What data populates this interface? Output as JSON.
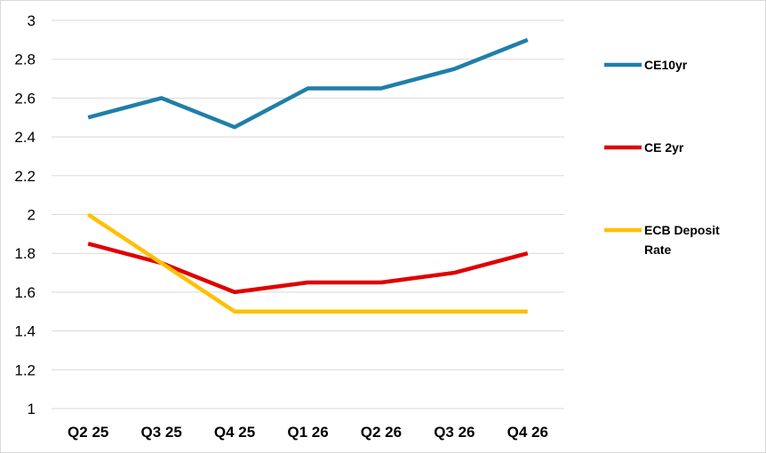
{
  "chart_data": {
    "type": "line",
    "title": "",
    "xlabel": "",
    "ylabel": "",
    "categories": [
      "Q2 25",
      "Q3 25",
      "Q4 25",
      "Q1 26",
      "Q2 26",
      "Q3 26",
      "Q4 26"
    ],
    "ylim": [
      1,
      3
    ],
    "yticks": [
      "1",
      "1.2",
      "1.4",
      "1.6",
      "1.8",
      "2",
      "2.2",
      "2.4",
      "2.6",
      "2.8",
      "3"
    ],
    "grid": true,
    "legend_position": "right",
    "series": [
      {
        "name": "CE10yr",
        "color": "#1f7fa8",
        "values": [
          2.5,
          2.6,
          2.45,
          2.65,
          2.65,
          2.75,
          2.9
        ]
      },
      {
        "name": "CE 2yr",
        "color": "#e00000",
        "values": [
          1.85,
          1.75,
          1.6,
          1.65,
          1.65,
          1.7,
          1.8
        ]
      },
      {
        "name": "ECB Deposit Rate",
        "name_lines": [
          "ECB Deposit",
          "Rate"
        ],
        "color": "#ffc000",
        "values": [
          2.0,
          1.75,
          1.5,
          1.5,
          1.5,
          1.5,
          1.5
        ]
      }
    ]
  }
}
